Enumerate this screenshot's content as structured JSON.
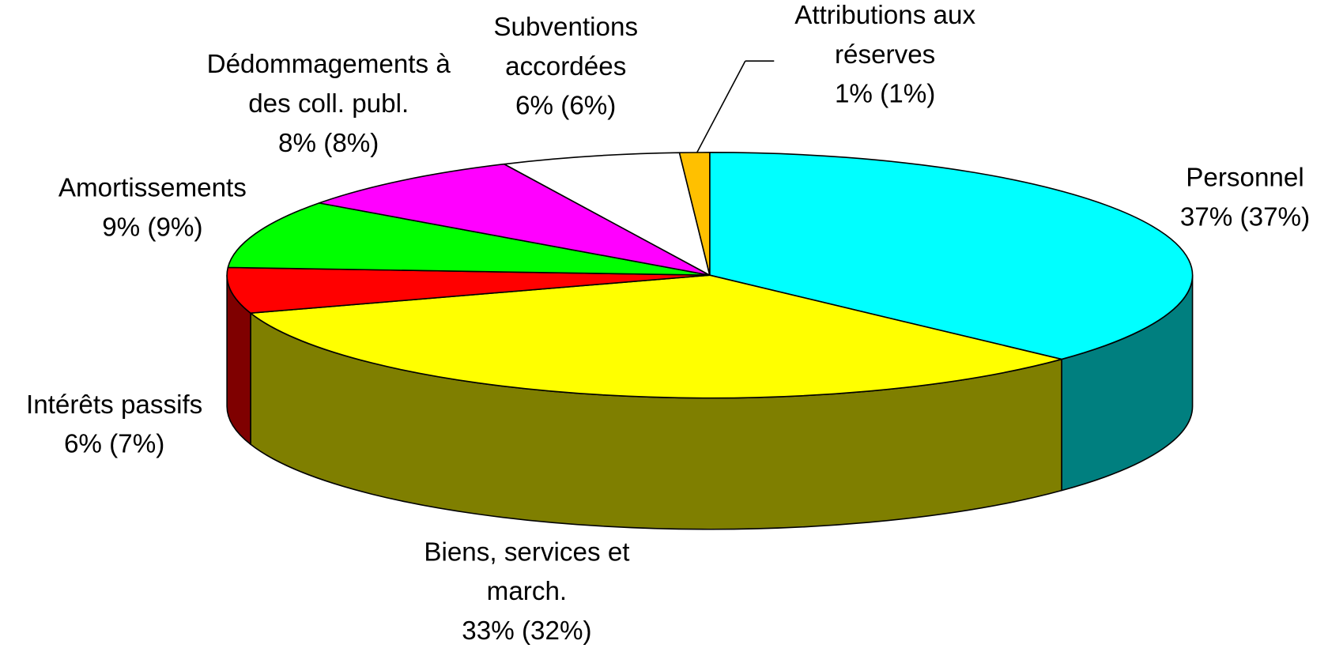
{
  "chart_data": {
    "type": "pie",
    "categories": [
      "Personnel",
      "Biens, services et march.",
      "Intérêts passifs",
      "Amortissements",
      "Dédommagements à des coll. publ.",
      "Subventions accordées",
      "Attributions aux réserves"
    ],
    "values": [
      37,
      33,
      6,
      9,
      8,
      6,
      1
    ],
    "value_labels": [
      "37% (37%)",
      "33% (32%)",
      "6% (7%)",
      "9% (9%)",
      "8% (8%)",
      "6% (6%)",
      "1% (1%)"
    ],
    "colors": [
      "#00ffff",
      "#ffff00",
      "#ff0000",
      "#00ff00",
      "#ff00ff",
      "#ffffff",
      "#ffc000"
    ]
  }
}
